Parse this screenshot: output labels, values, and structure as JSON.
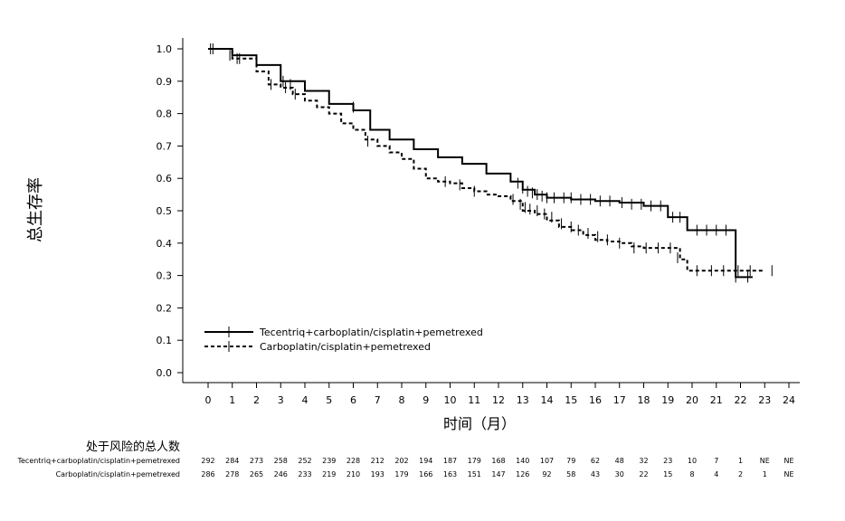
{
  "chart_data": {
    "type": "line",
    "title": "",
    "xlabel": "时间（月）",
    "ylabel": "总生存率",
    "xlim": [
      0,
      24
    ],
    "ylim": [
      0,
      1.0
    ],
    "x_ticks": [
      0,
      1,
      2,
      3,
      4,
      5,
      6,
      7,
      8,
      9,
      10,
      11,
      12,
      13,
      14,
      15,
      16,
      17,
      18,
      19,
      20,
      21,
      22,
      23,
      24
    ],
    "y_ticks": [
      0.0,
      0.1,
      0.2,
      0.3,
      0.4,
      0.5,
      0.6,
      0.7,
      0.8,
      0.9,
      1.0
    ],
    "grid": false,
    "legend_position": "bottom-left",
    "series": [
      {
        "name": "Tecentriq+carboplatin/cisplatin+pemetrexed",
        "style": "solid",
        "x": [
          0,
          1,
          2,
          3,
          4,
          5,
          6,
          6.7,
          7.5,
          8.5,
          9.5,
          10.5,
          11.5,
          12.5,
          13,
          13.5,
          14,
          15,
          16,
          17,
          18,
          19,
          19.8,
          20.5,
          21,
          21.8,
          21.8,
          22.5
        ],
        "y": [
          1.0,
          0.98,
          0.95,
          0.9,
          0.87,
          0.83,
          0.81,
          0.75,
          0.72,
          0.69,
          0.665,
          0.645,
          0.615,
          0.59,
          0.565,
          0.55,
          0.54,
          0.535,
          0.53,
          0.525,
          0.515,
          0.48,
          0.44,
          0.44,
          0.44,
          0.44,
          0.295,
          0.295
        ],
        "censor_x": [
          0.1,
          0.9,
          1.3,
          3.1,
          3.4,
          6.0,
          12.8,
          13.0,
          13.2,
          13.4,
          13.6,
          13.8,
          14.0,
          14.3,
          14.7,
          15.0,
          15.4,
          15.8,
          16.2,
          16.6,
          17.1,
          17.5,
          17.9,
          18.3,
          18.7,
          19.2,
          19.5,
          20.2,
          20.6,
          21.0,
          21.4,
          21.8,
          22.3
        ],
        "censor_y": [
          1.0,
          0.98,
          0.97,
          0.9,
          0.89,
          0.82,
          0.585,
          0.57,
          0.56,
          0.555,
          0.55,
          0.545,
          0.54,
          0.54,
          0.54,
          0.54,
          0.535,
          0.535,
          0.53,
          0.53,
          0.525,
          0.52,
          0.52,
          0.515,
          0.515,
          0.48,
          0.48,
          0.44,
          0.44,
          0.44,
          0.44,
          0.295,
          0.295
        ]
      },
      {
        "name": "Carboplatin/cisplatin+pemetrexed",
        "style": "dashed",
        "x": [
          0,
          1,
          2,
          2.5,
          3,
          3.5,
          4,
          4.5,
          5,
          5.5,
          6,
          6.5,
          7,
          7.5,
          8,
          8.5,
          9,
          9.5,
          10,
          10.5,
          11,
          11.5,
          12,
          12.5,
          13,
          13.5,
          14,
          14.5,
          15,
          15.5,
          16,
          16.5,
          17,
          17.5,
          18,
          18.5,
          19,
          19.5,
          19.8,
          20.5,
          21,
          22,
          22.5,
          23
        ],
        "y": [
          1.0,
          0.97,
          0.93,
          0.89,
          0.88,
          0.86,
          0.84,
          0.82,
          0.8,
          0.77,
          0.75,
          0.72,
          0.7,
          0.68,
          0.66,
          0.63,
          0.6,
          0.59,
          0.585,
          0.57,
          0.56,
          0.55,
          0.545,
          0.53,
          0.5,
          0.49,
          0.47,
          0.45,
          0.44,
          0.425,
          0.41,
          0.405,
          0.4,
          0.39,
          0.385,
          0.385,
          0.385,
          0.35,
          0.315,
          0.315,
          0.315,
          0.315,
          0.315,
          0.315
        ],
        "censor_x": [
          0.2,
          1.2,
          2.6,
          3.2,
          3.6,
          6.6,
          9.8,
          10.4,
          11.0,
          12.6,
          12.9,
          13.1,
          13.3,
          13.6,
          13.9,
          14.2,
          14.6,
          15.0,
          15.3,
          15.7,
          16.1,
          16.5,
          17.0,
          17.6,
          18.1,
          18.6,
          19.1,
          19.4,
          20.2,
          20.8,
          21.3,
          21.9,
          22.4,
          23.3
        ],
        "censor_y": [
          1.0,
          0.97,
          0.89,
          0.88,
          0.86,
          0.715,
          0.59,
          0.58,
          0.56,
          0.535,
          0.52,
          0.51,
          0.505,
          0.5,
          0.49,
          0.48,
          0.46,
          0.45,
          0.44,
          0.43,
          0.42,
          0.41,
          0.4,
          0.385,
          0.385,
          0.385,
          0.385,
          0.355,
          0.315,
          0.315,
          0.315,
          0.315,
          0.315,
          0.315
        ]
      }
    ],
    "risk_table": {
      "title": "处于风险的总人数",
      "rows": [
        {
          "label": "Tecentriq+carboplatin/cisplatin+pemetrexed",
          "values": [
            "292",
            "284",
            "273",
            "258",
            "252",
            "239",
            "228",
            "212",
            "202",
            "194",
            "187",
            "179",
            "168",
            "140",
            "107",
            "79",
            "62",
            "48",
            "32",
            "23",
            "10",
            "7",
            "1",
            "NE",
            "NE"
          ]
        },
        {
          "label": "Carboplatin/cisplatin+pemetrexed",
          "values": [
            "286",
            "278",
            "265",
            "246",
            "233",
            "219",
            "210",
            "193",
            "179",
            "166",
            "163",
            "151",
            "147",
            "126",
            "92",
            "58",
            "43",
            "30",
            "22",
            "15",
            "8",
            "4",
            "2",
            "1",
            "NE"
          ]
        }
      ]
    }
  }
}
